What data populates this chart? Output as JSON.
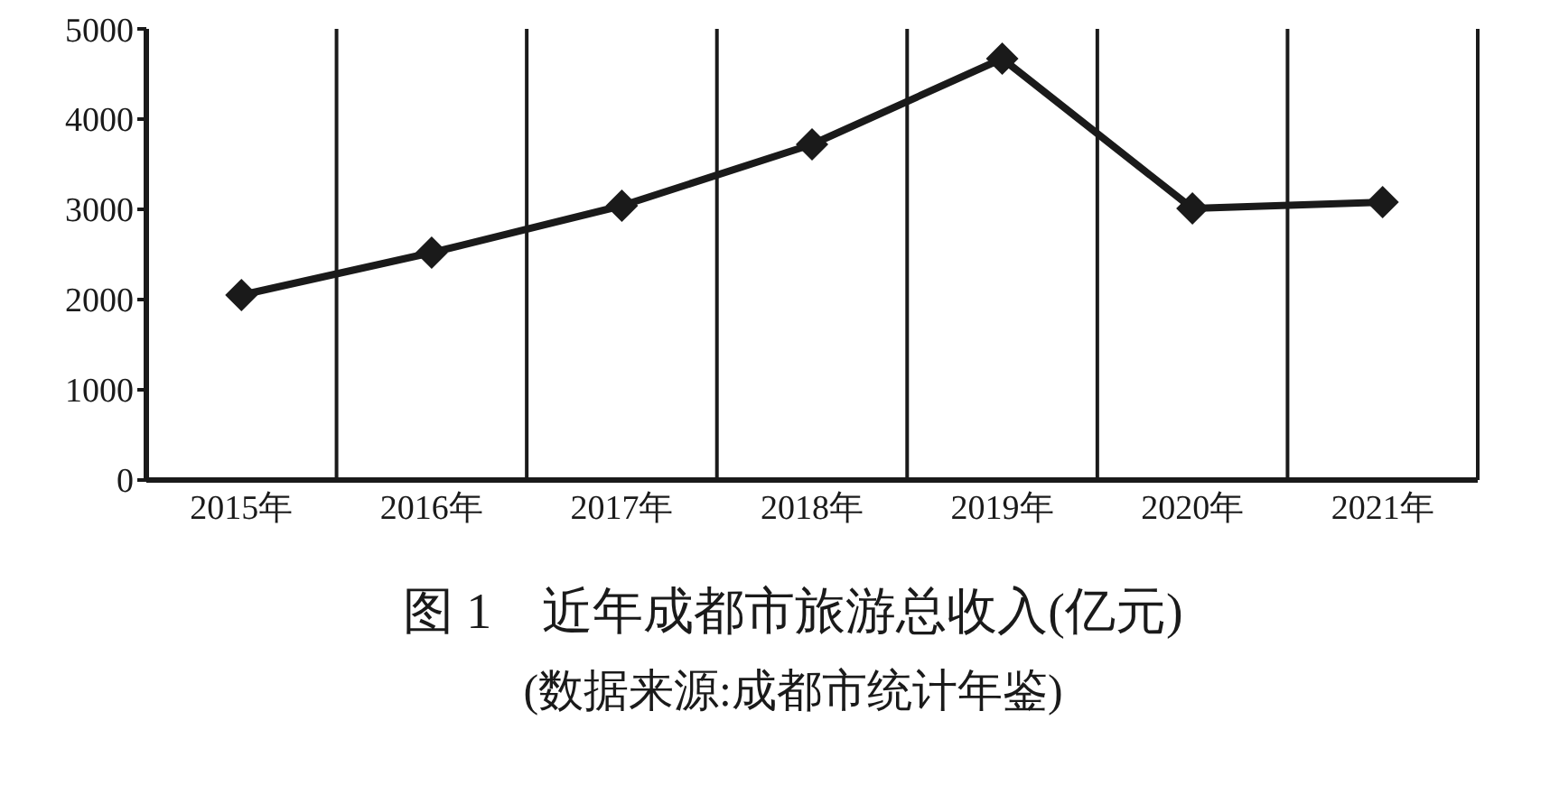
{
  "chart_data": {
    "type": "line",
    "title": "图 1　近年成都市旅游总收入(亿元)",
    "subtitle": "(数据来源:成都市统计年鉴)",
    "categories": [
      "2015年",
      "2016年",
      "2017年",
      "2018年",
      "2019年",
      "2020年",
      "2021年"
    ],
    "series": [
      {
        "color": "#1a1a1a",
        "values": [
          2050,
          2520,
          3040,
          3720,
          4670,
          3010,
          3080
        ]
      }
    ],
    "ylim": [
      0,
      5000
    ],
    "yticks": [
      0,
      1000,
      2000,
      3000,
      4000,
      5000
    ],
    "grid": "x",
    "marker": "diamond",
    "line_style": "solid"
  }
}
